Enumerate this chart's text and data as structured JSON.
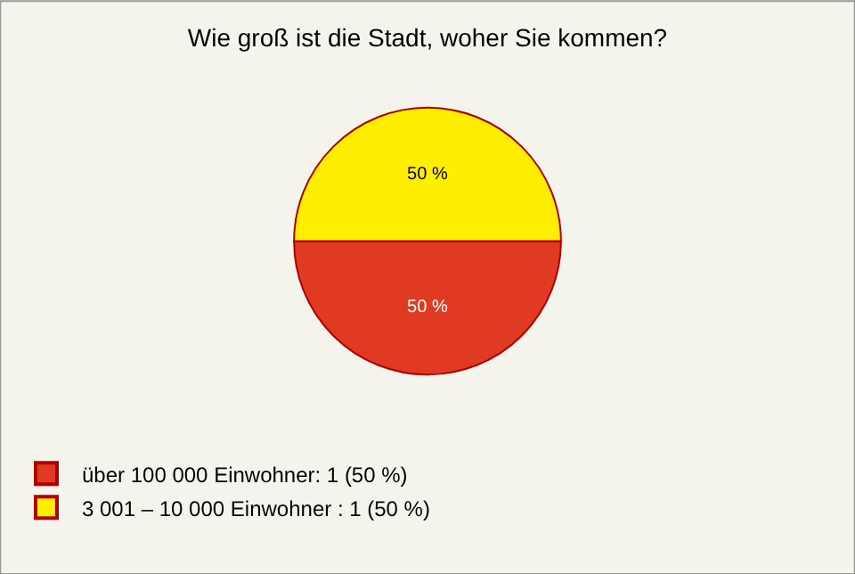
{
  "chart_data": {
    "type": "pie",
    "title": "Wie groß ist die Stadt, woher Sie kommen?",
    "categories": [
      "über 100 000 Einwohner: 1 (50 %)",
      "3 001 – 10 000 Einwohner : 1 (50 %)"
    ],
    "values": [
      50,
      50
    ],
    "value_labels": [
      "50 %",
      "50 %"
    ],
    "colors": [
      "#e03a22",
      "#ffee00"
    ],
    "legend": "bottom left"
  }
}
